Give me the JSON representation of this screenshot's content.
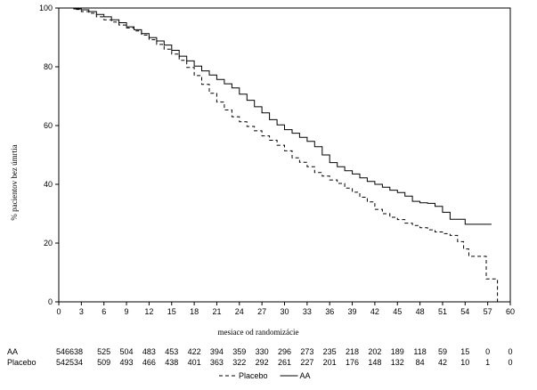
{
  "chart_data": {
    "type": "line",
    "title": "",
    "xlabel": "mesiace od randomizácie",
    "ylabel": "% pacientov bez úmrtia",
    "xlim": [
      0,
      60
    ],
    "ylim": [
      0,
      100
    ],
    "xticks": [
      0,
      3,
      6,
      9,
      12,
      15,
      18,
      21,
      24,
      27,
      30,
      33,
      36,
      39,
      42,
      45,
      48,
      51,
      54,
      57,
      60
    ],
    "yticks": [
      0,
      20,
      40,
      60,
      80,
      100
    ],
    "grid": false,
    "legend_position": "bottom-right",
    "series": [
      {
        "name": "AA",
        "style": "solid",
        "color": "#000000",
        "points": [
          [
            0,
            100
          ],
          [
            1,
            100
          ],
          [
            2,
            99.7
          ],
          [
            3,
            99.4
          ],
          [
            4,
            98.8
          ],
          [
            5,
            97.8
          ],
          [
            6,
            97
          ],
          [
            7,
            96
          ],
          [
            8,
            95
          ],
          [
            9,
            93.6
          ],
          [
            10,
            92.6
          ],
          [
            11,
            91.3
          ],
          [
            12,
            89.9
          ],
          [
            13,
            88.8
          ],
          [
            14,
            87.4
          ],
          [
            15,
            85.6
          ],
          [
            16,
            83.6
          ],
          [
            17,
            82
          ],
          [
            18,
            80.2
          ],
          [
            19,
            78.6
          ],
          [
            20,
            77.2
          ],
          [
            21,
            75.7
          ],
          [
            22,
            74.2
          ],
          [
            23,
            72.8
          ],
          [
            24,
            70.7
          ],
          [
            25,
            68.6
          ],
          [
            26,
            66.4
          ],
          [
            27,
            64.3
          ],
          [
            28,
            62
          ],
          [
            29,
            60.2
          ],
          [
            30,
            58.6
          ],
          [
            31,
            57.4
          ],
          [
            32,
            56
          ],
          [
            33,
            54.6
          ],
          [
            34,
            52.8
          ],
          [
            35,
            50
          ],
          [
            36,
            47.4
          ],
          [
            37,
            46
          ],
          [
            38,
            44.6
          ],
          [
            39,
            43.5
          ],
          [
            40,
            42.2
          ],
          [
            41,
            41
          ],
          [
            42,
            40
          ],
          [
            43,
            39
          ],
          [
            44,
            38
          ],
          [
            45,
            37.2
          ],
          [
            46,
            36
          ],
          [
            47,
            34.2
          ],
          [
            48,
            33.7
          ],
          [
            49,
            33.5
          ],
          [
            50,
            32.5
          ],
          [
            51,
            30.5
          ],
          [
            52,
            28.1
          ],
          [
            53,
            28.1
          ],
          [
            54,
            26.4
          ],
          [
            55,
            26.4
          ],
          [
            57,
            26.4
          ],
          [
            57.5,
            26.4
          ]
        ]
      },
      {
        "name": "Placebo",
        "style": "dashed",
        "color": "#000000",
        "points": [
          [
            0,
            100
          ],
          [
            1,
            100
          ],
          [
            2,
            99.5
          ],
          [
            3,
            98.8
          ],
          [
            4,
            98.2
          ],
          [
            5,
            97
          ],
          [
            6,
            96
          ],
          [
            7,
            95.2
          ],
          [
            8,
            94.2
          ],
          [
            9,
            93.2
          ],
          [
            10,
            92.2
          ],
          [
            11,
            90.8
          ],
          [
            12,
            89.2
          ],
          [
            13,
            87.6
          ],
          [
            14,
            86
          ],
          [
            15,
            84.3
          ],
          [
            16,
            82.2
          ],
          [
            17,
            79.8
          ],
          [
            18,
            77
          ],
          [
            19,
            74
          ],
          [
            20,
            71
          ],
          [
            21,
            68
          ],
          [
            22,
            65.3
          ],
          [
            23,
            63
          ],
          [
            24,
            61.3
          ],
          [
            25,
            59.7
          ],
          [
            26,
            58.2
          ],
          [
            27,
            56.5
          ],
          [
            28,
            55
          ],
          [
            29,
            53.3
          ],
          [
            30,
            51.4
          ],
          [
            31,
            49
          ],
          [
            32,
            47.5
          ],
          [
            33,
            46
          ],
          [
            34,
            44
          ],
          [
            35,
            42.8
          ],
          [
            36,
            41.5
          ],
          [
            37,
            40.3
          ],
          [
            38,
            38.7
          ],
          [
            39,
            37.3
          ],
          [
            40,
            35.6
          ],
          [
            41,
            34
          ],
          [
            42,
            31.5
          ],
          [
            43,
            30
          ],
          [
            44,
            28.8
          ],
          [
            45,
            28
          ],
          [
            46,
            26.8
          ],
          [
            47,
            26
          ],
          [
            48,
            25.2
          ],
          [
            49,
            24.5
          ],
          [
            50,
            23.8
          ],
          [
            51,
            23.2
          ],
          [
            52,
            22.6
          ],
          [
            53,
            20.5
          ],
          [
            53.8,
            18
          ],
          [
            54.5,
            15.5
          ],
          [
            55.5,
            15.5
          ],
          [
            56.8,
            15.5
          ],
          [
            56.8,
            7.8
          ],
          [
            57.8,
            7.8
          ],
          [
            58.3,
            7.8
          ],
          [
            58.3,
            0
          ]
        ]
      }
    ],
    "risk_table": {
      "rows": [
        {
          "label": "AA",
          "values": [
            "546638",
            "525",
            "504",
            "483",
            "453",
            "422",
            "394",
            "359",
            "330",
            "296",
            "273",
            "235",
            "218",
            "202",
            "189",
            "118",
            "59",
            "15",
            "0",
            "0"
          ]
        },
        {
          "label": "Placebo",
          "values": [
            "542534",
            "509",
            "493",
            "466",
            "438",
            "401",
            "363",
            "322",
            "292",
            "261",
            "227",
            "201",
            "176",
            "148",
            "132",
            "84",
            "42",
            "10",
            "1",
            "0"
          ]
        }
      ]
    },
    "legend": [
      {
        "label": "Placebo",
        "style": "dashed"
      },
      {
        "label": "AA",
        "style": "solid"
      }
    ]
  }
}
